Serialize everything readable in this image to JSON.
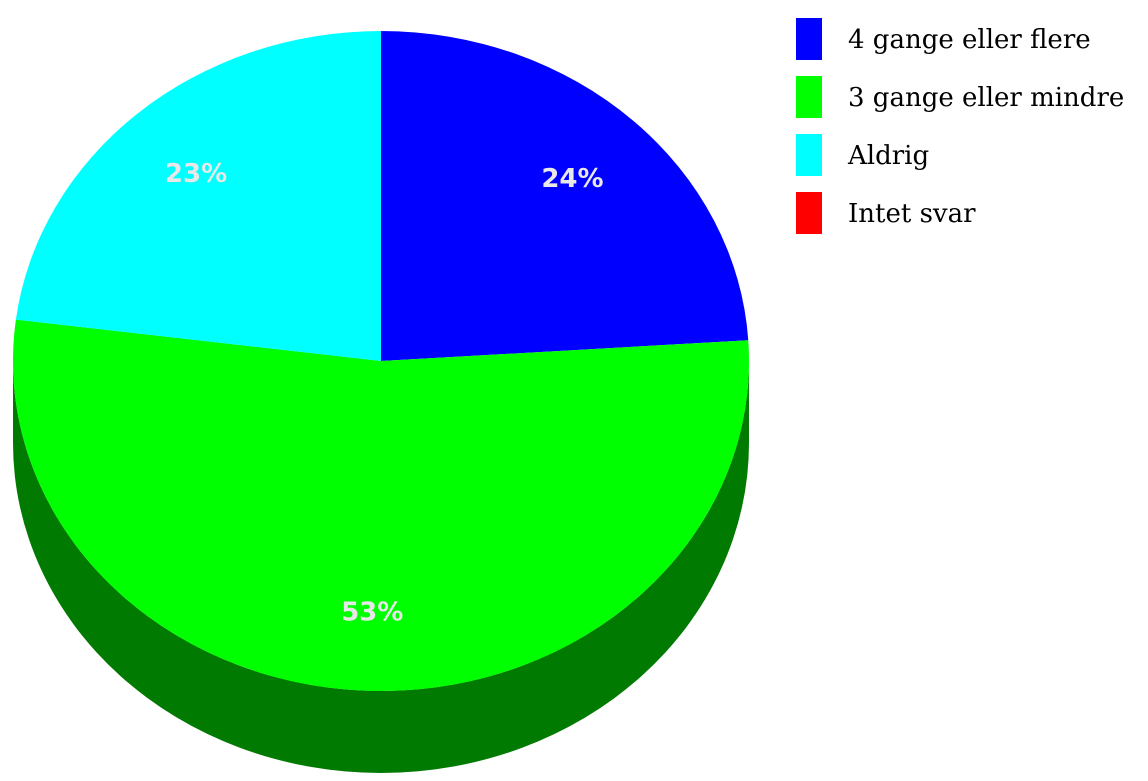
{
  "chart_data": {
    "type": "pie",
    "categories": [
      "4 gange eller flere",
      "3 gange eller mindre",
      "Aldrig",
      "Intet svar"
    ],
    "values": [
      24,
      53,
      23,
      0
    ],
    "value_labels": [
      "24%",
      "53%",
      "23%",
      ""
    ],
    "colors": [
      "#0000ff",
      "#00ff00",
      "#00ffff",
      "#ff0000"
    ],
    "side_colors": [
      "#000080",
      "#007a00",
      "#008080",
      "#800000"
    ],
    "title": "",
    "legend_position": "right",
    "style": "3d"
  }
}
